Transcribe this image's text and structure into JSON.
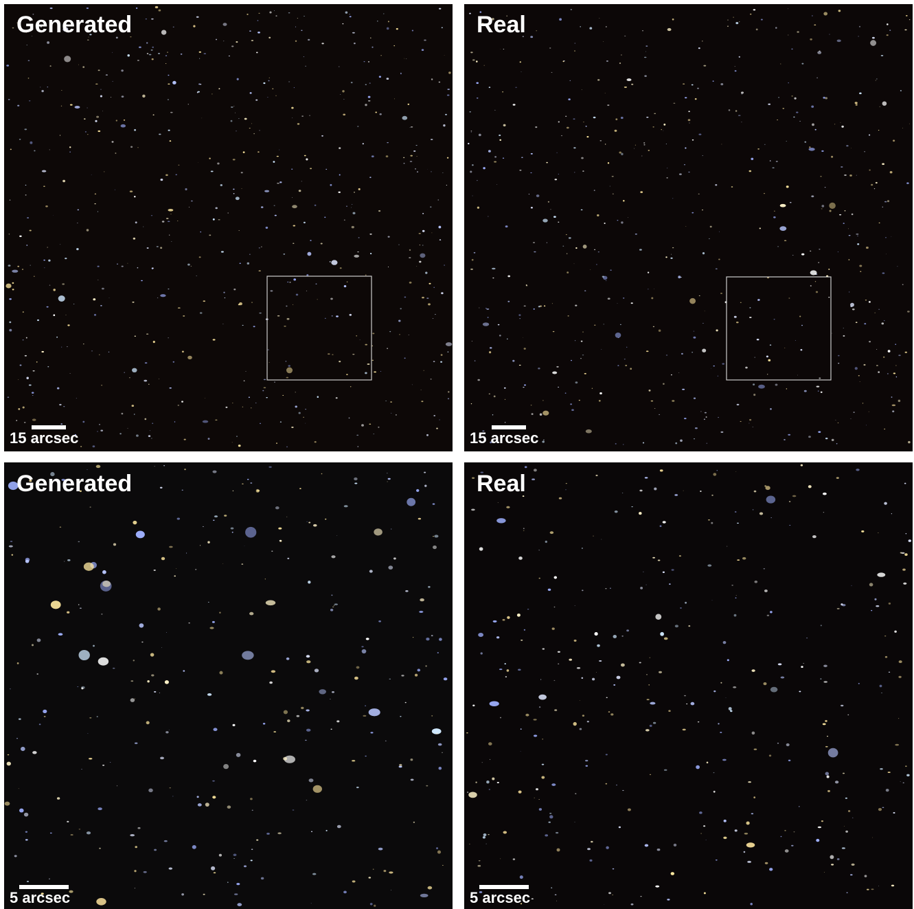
{
  "panels": [
    {
      "label": "Generated",
      "scale_bar": "15 arcsec"
    },
    {
      "label": "Real",
      "scale_bar": "15 arcsec"
    },
    {
      "label": "Generated",
      "scale_bar": "5 arcsec"
    },
    {
      "label": "Real",
      "scale_bar": "5 arcsec"
    }
  ]
}
